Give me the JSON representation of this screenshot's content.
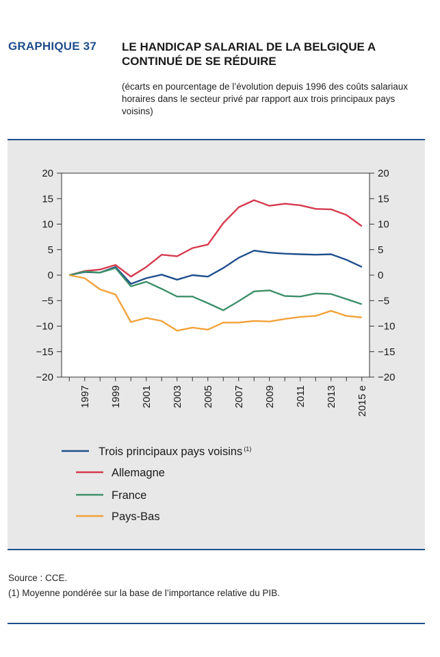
{
  "header": {
    "label": "GRAPHIQUE 37",
    "title": "LE HANDICAP SALARIAL DE LA BELGIQUE A CONTINUÉ DE SE RÉDUIRE",
    "subtitle": "(écarts en pourcentage de l’évolution depuis 1996 des coûts salariaux horaires dans le secteur privé par rapport aux trois principaux pays voisins)"
  },
  "chart_data": {
    "type": "line",
    "x": [
      1996,
      1997,
      1998,
      1999,
      2000,
      2001,
      2002,
      2003,
      2004,
      2005,
      2006,
      2007,
      2008,
      2009,
      2010,
      2011,
      2012,
      2013,
      2014,
      2015
    ],
    "x_tick_labels": [
      "1997",
      "1999",
      "2001",
      "2003",
      "2005",
      "2007",
      "2009",
      "2011",
      "2013",
      "2015 e"
    ],
    "x_tick_values": [
      1997,
      1999,
      2001,
      2003,
      2005,
      2007,
      2009,
      2011,
      2013,
      2015
    ],
    "ylim": [
      -20,
      20
    ],
    "y_ticks": [
      20,
      15,
      10,
      5,
      0,
      -5,
      -10,
      -15,
      -20
    ],
    "y_tick_labels": [
      "20",
      "15",
      "10",
      "5",
      "0",
      "−5",
      "−10",
      "−15",
      "−20"
    ],
    "grid": false,
    "legend_position": "bottom",
    "series": [
      {
        "name": "Trois principaux pays voisins",
        "note": "(1)",
        "color": "#1f4e8c",
        "values": [
          0,
          0.6,
          0.5,
          1.6,
          -1.7,
          -0.6,
          0.1,
          -0.9,
          0.0,
          -0.3,
          1.4,
          3.4,
          4.8,
          4.4,
          4.2,
          4.1,
          4.0,
          4.1,
          3.0,
          1.6
        ]
      },
      {
        "name": "Allemagne",
        "color": "#d63a4f",
        "values": [
          0,
          0.8,
          1.1,
          2.0,
          -0.3,
          1.6,
          4.0,
          3.7,
          5.3,
          6.0,
          10.2,
          13.3,
          14.7,
          13.6,
          14.0,
          13.7,
          13.0,
          12.9,
          11.8,
          9.6
        ]
      },
      {
        "name": "France",
        "color": "#3d8f68",
        "values": [
          0,
          0.7,
          0.5,
          1.4,
          -2.2,
          -1.3,
          -2.7,
          -4.2,
          -4.2,
          -5.5,
          -6.9,
          -5.1,
          -3.2,
          -3.0,
          -4.1,
          -4.2,
          -3.6,
          -3.7,
          -4.7,
          -5.7
        ]
      },
      {
        "name": "Pays-Bas",
        "color": "#f2a23a",
        "values": [
          0,
          -0.6,
          -2.8,
          -3.8,
          -9.2,
          -8.4,
          -9.0,
          -10.9,
          -10.3,
          -10.7,
          -9.3,
          -9.3,
          -9.0,
          -9.1,
          -8.6,
          -8.2,
          -8.0,
          -7.0,
          -8.0,
          -8.3
        ]
      }
    ]
  },
  "source": {
    "line1": "Source : CCE.",
    "line2": "(1) Moyenne pondérée sur la base de l’importance relative du PIB."
  },
  "colors": {
    "accent": "#1f4e8c",
    "panel_bg": "#e8e8e8",
    "plot_bg": "#ffffff"
  }
}
